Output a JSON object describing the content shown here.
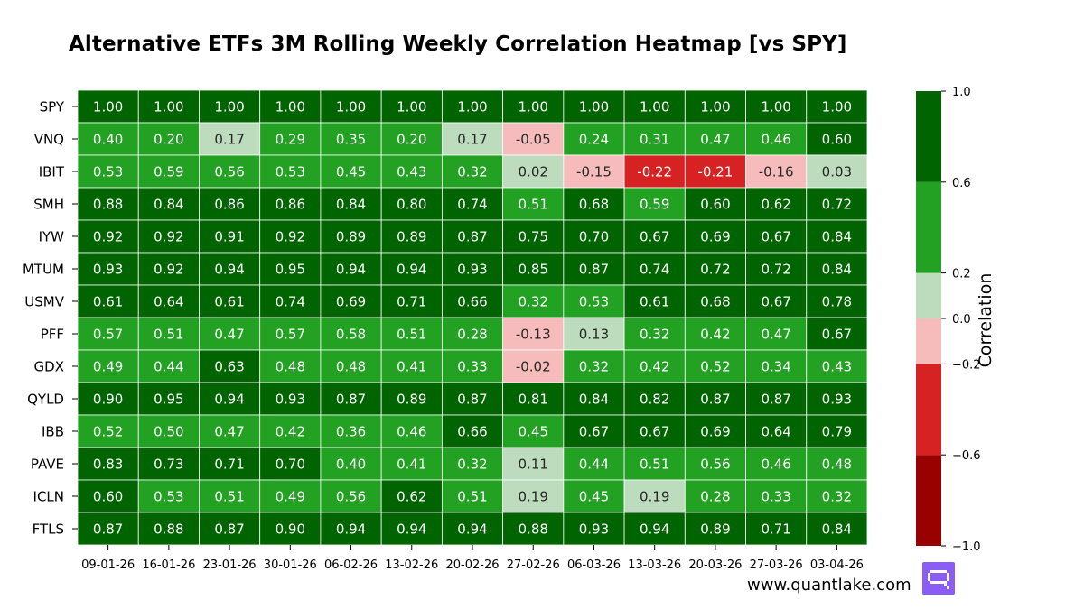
{
  "chart_data": {
    "type": "heatmap",
    "title": "Alternative ETFs 3M Rolling Weekly Correlation Heatmap [vs SPY]",
    "xlabel": "",
    "ylabel": "",
    "rows": [
      "SPY",
      "VNQ",
      "IBIT",
      "SMH",
      "IYW",
      "MTUM",
      "USMV",
      "PFF",
      "GDX",
      "QYLD",
      "IBB",
      "PAVE",
      "ICLN",
      "FTLS"
    ],
    "columns": [
      "09-01-26",
      "16-01-26",
      "23-01-26",
      "30-01-26",
      "06-02-26",
      "13-02-26",
      "20-02-26",
      "27-02-26",
      "06-03-26",
      "13-03-26",
      "20-03-26",
      "27-03-26",
      "03-04-26"
    ],
    "values": [
      [
        1.0,
        1.0,
        1.0,
        1.0,
        1.0,
        1.0,
        1.0,
        1.0,
        1.0,
        1.0,
        1.0,
        1.0,
        1.0
      ],
      [
        0.4,
        0.2,
        0.17,
        0.29,
        0.35,
        0.2,
        0.17,
        -0.05,
        0.24,
        0.31,
        0.47,
        0.46,
        0.6
      ],
      [
        0.53,
        0.59,
        0.56,
        0.53,
        0.45,
        0.43,
        0.32,
        0.02,
        -0.15,
        -0.22,
        -0.21,
        -0.16,
        0.03
      ],
      [
        0.88,
        0.84,
        0.86,
        0.86,
        0.84,
        0.8,
        0.74,
        0.51,
        0.68,
        0.59,
        0.6,
        0.62,
        0.72
      ],
      [
        0.92,
        0.92,
        0.91,
        0.92,
        0.89,
        0.89,
        0.87,
        0.75,
        0.7,
        0.67,
        0.69,
        0.67,
        0.84
      ],
      [
        0.93,
        0.92,
        0.94,
        0.95,
        0.94,
        0.94,
        0.93,
        0.85,
        0.87,
        0.74,
        0.72,
        0.72,
        0.84
      ],
      [
        0.61,
        0.64,
        0.61,
        0.74,
        0.69,
        0.71,
        0.66,
        0.32,
        0.53,
        0.61,
        0.68,
        0.67,
        0.78
      ],
      [
        0.57,
        0.51,
        0.47,
        0.57,
        0.58,
        0.51,
        0.28,
        -0.13,
        0.13,
        0.32,
        0.42,
        0.47,
        0.67
      ],
      [
        0.49,
        0.44,
        0.63,
        0.48,
        0.48,
        0.41,
        0.33,
        -0.02,
        0.32,
        0.42,
        0.52,
        0.34,
        0.43
      ],
      [
        0.9,
        0.95,
        0.94,
        0.93,
        0.87,
        0.89,
        0.87,
        0.81,
        0.84,
        0.82,
        0.87,
        0.87,
        0.93
      ],
      [
        0.52,
        0.5,
        0.47,
        0.42,
        0.36,
        0.46,
        0.66,
        0.45,
        0.67,
        0.67,
        0.69,
        0.64,
        0.79
      ],
      [
        0.83,
        0.73,
        0.71,
        0.7,
        0.4,
        0.41,
        0.32,
        0.11,
        0.44,
        0.51,
        0.56,
        0.46,
        0.48
      ],
      [
        0.6,
        0.53,
        0.51,
        0.49,
        0.56,
        0.62,
        0.51,
        0.19,
        0.45,
        0.19,
        0.28,
        0.33,
        0.32
      ],
      [
        0.87,
        0.88,
        0.87,
        0.9,
        0.94,
        0.94,
        0.94,
        0.88,
        0.93,
        0.94,
        0.89,
        0.71,
        0.84
      ]
    ],
    "vmin": -1.0,
    "vmax": 1.0,
    "color_bins": [
      {
        "from": -1.0,
        "to": -0.6,
        "color": "#990000"
      },
      {
        "from": -0.6,
        "to": -0.2,
        "color": "#d62222"
      },
      {
        "from": -0.2,
        "to": 0.0,
        "color": "#f6bcbc"
      },
      {
        "from": 0.0,
        "to": 0.2,
        "color": "#bddcbd"
      },
      {
        "from": 0.2,
        "to": 0.6,
        "color": "#22a122"
      },
      {
        "from": 0.6,
        "to": 1.0,
        "color": "#006400"
      }
    ],
    "colorbar": {
      "label": "Correlation",
      "ticks": [
        1.0,
        0.6,
        0.2,
        0.0,
        -0.2,
        -0.6,
        -1.0
      ],
      "tick_labels": [
        "1.0",
        "0.6",
        "0.2",
        "0.0",
        "−0.2",
        "−0.6",
        "−1.0"
      ]
    },
    "annotation_decimals": 2
  },
  "footer": {
    "watermark": "www.quantlake.com",
    "logo_icon": "quantlake-logo-icon",
    "logo_color": "#8b5cf6"
  }
}
